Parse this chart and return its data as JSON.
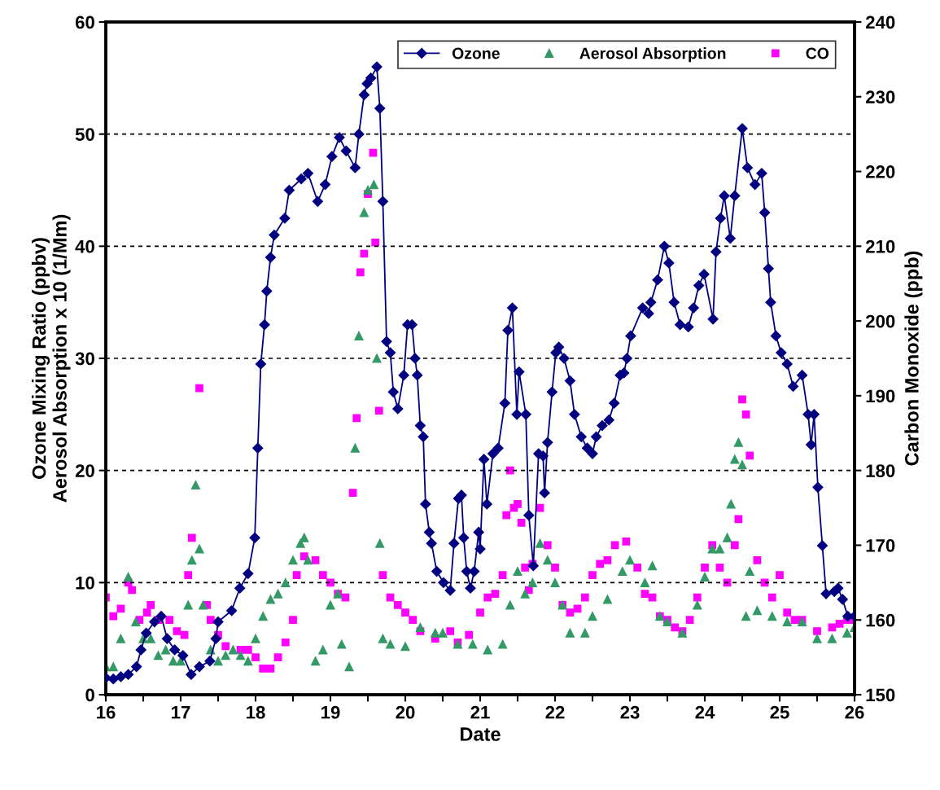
{
  "chart_data": {
    "type": "line",
    "xlabel": "Date",
    "ylabel": "Ozone Mixing Ratio (ppbv)\nAerosol Absorption x 10 (1/Mm)",
    "y2label": "Carbon Monoxide (ppb)",
    "xlim": [
      16,
      26
    ],
    "xticks": [
      16,
      {
        "value": 16.5,
        "label": null
      },
      17,
      {
        "value": 17.5,
        "label": null
      },
      18,
      {
        "value": 18.5,
        "label": null
      },
      19,
      {
        "value": 19.5,
        "label": null
      },
      20,
      {
        "value": 20.5,
        "label": null
      },
      21,
      {
        "value": 21.5,
        "label": null
      },
      22,
      {
        "value": 22.5,
        "label": null
      },
      23,
      {
        "value": 23.5,
        "label": null
      },
      24,
      {
        "value": 24.5,
        "label": null
      },
      25,
      {
        "value": 25.5,
        "label": null
      },
      26
    ],
    "ylim": [
      0,
      60
    ],
    "yticks": [
      0,
      10,
      20,
      30,
      40,
      50,
      60
    ],
    "y2lim": [
      150,
      240
    ],
    "y2ticks": [
      150,
      160,
      170,
      180,
      190,
      200,
      210,
      220,
      230,
      240
    ],
    "grid": "y",
    "legend": "top right",
    "series": [
      {
        "name": "Ozone",
        "marker": "diamond",
        "line_style": "solid",
        "color": "#000080",
        "x": [
          16.0,
          16.1,
          16.2,
          16.3,
          16.41,
          16.47,
          16.54,
          16.65,
          16.74,
          16.82,
          16.92,
          17.03,
          17.14,
          17.25,
          17.39,
          17.47,
          17.5,
          17.68,
          17.79,
          17.9,
          17.99,
          18.03,
          18.07,
          18.12,
          18.15,
          18.2,
          18.25,
          18.39,
          18.45,
          18.61,
          18.7,
          18.83,
          18.93,
          19.02,
          19.12,
          19.21,
          19.33,
          19.38,
          19.45,
          19.49,
          19.54,
          19.62,
          19.66,
          19.7,
          19.75,
          19.8,
          19.84,
          19.9,
          19.98,
          20.03,
          20.09,
          20.13,
          20.16,
          20.2,
          20.24,
          20.27,
          20.32,
          20.35,
          20.42,
          20.51,
          20.6,
          20.65,
          20.71,
          20.75,
          20.78,
          20.82,
          20.87,
          20.92,
          20.98,
          21.0,
          21.05,
          21.09,
          21.17,
          21.24,
          21.33,
          21.37,
          21.43,
          21.49,
          21.52,
          21.61,
          21.65,
          21.71,
          21.78,
          21.84,
          21.86,
          21.9,
          21.96,
          22.01,
          22.05,
          22.12,
          22.2,
          22.26,
          22.35,
          22.43,
          22.5,
          22.55,
          22.63,
          22.72,
          22.79,
          22.87,
          22.92,
          22.96,
          23.01,
          23.17,
          23.25,
          23.28,
          23.37,
          23.46,
          23.52,
          23.59,
          23.67,
          23.78,
          23.85,
          23.92,
          23.99,
          24.11,
          24.15,
          24.21,
          24.26,
          24.34,
          24.4,
          24.5,
          24.57,
          24.67,
          24.76,
          24.8,
          24.85,
          24.88,
          24.95,
          25.02,
          25.1,
          25.18,
          25.3,
          25.38,
          25.42,
          25.46,
          25.51,
          25.57,
          25.62,
          25.73,
          25.78,
          25.84,
          25.91,
          26.0
        ],
        "values": [
          1.5,
          1.4,
          1.6,
          1.8,
          2.5,
          4,
          5.5,
          6.5,
          7,
          5,
          4,
          3.5,
          1.8,
          2.5,
          3,
          5,
          6.5,
          7.5,
          9.5,
          10.8,
          14,
          22,
          29.5,
          33,
          36,
          39,
          41,
          42.5,
          45,
          46,
          46.5,
          44,
          45.5,
          48,
          49.7,
          48.5,
          47,
          50,
          53.5,
          54.5,
          55,
          56,
          52.3,
          44,
          31.5,
          30.5,
          27,
          25.5,
          28.5,
          33,
          33,
          30,
          28.5,
          24,
          23,
          17,
          14.5,
          13.5,
          11,
          10,
          9.3,
          13.5,
          17.5,
          17.8,
          14,
          11,
          9.5,
          11,
          14.5,
          13,
          21,
          17,
          21.5,
          22,
          26,
          32.5,
          34.5,
          25,
          28.8,
          25,
          16,
          11.5,
          21.5,
          21.3,
          18,
          22.5,
          27,
          30.5,
          31,
          30,
          28,
          25,
          23,
          22,
          21.5,
          23,
          24,
          24.5,
          26,
          28.5,
          28.7,
          30,
          32,
          34.5,
          34,
          35,
          37,
          40,
          38.5,
          35,
          33,
          32.8,
          34.5,
          36.5,
          37.5,
          33.5,
          39.5,
          42.5,
          44.5,
          40.7,
          44.5,
          50.5,
          47,
          45.5,
          46.5,
          43,
          38,
          35,
          32,
          30.5,
          29.5,
          27.5,
          28.5,
          25,
          22.3,
          25,
          18.5,
          13.3,
          9,
          9.2,
          9.5,
          8.5,
          7,
          7
        ]
      },
      {
        "name": "Aerosol Absorption",
        "type": "scatter",
        "marker": "triangle",
        "color": "#339966",
        "x": [
          16.0,
          16.1,
          16.2,
          16.3,
          16.4,
          16.5,
          16.6,
          16.7,
          16.8,
          16.9,
          17.0,
          17.1,
          17.15,
          17.2,
          17.25,
          17.3,
          17.4,
          17.5,
          17.6,
          17.7,
          17.8,
          17.9,
          18.0,
          18.1,
          18.2,
          18.3,
          18.4,
          18.5,
          18.6,
          18.65,
          18.7,
          18.8,
          18.9,
          19.0,
          19.1,
          19.15,
          19.25,
          19.33,
          19.38,
          19.45,
          19.5,
          19.58,
          19.62,
          19.66,
          19.7,
          19.8,
          20.0,
          20.2,
          20.4,
          20.5,
          20.7,
          20.9,
          21.1,
          21.3,
          21.4,
          21.5,
          21.6,
          21.7,
          21.8,
          21.9,
          22.0,
          22.1,
          22.2,
          22.4,
          22.5,
          22.7,
          22.9,
          23.0,
          23.2,
          23.3,
          23.4,
          23.5,
          23.7,
          23.9,
          24.0,
          24.1,
          24.2,
          24.3,
          24.35,
          24.4,
          24.45,
          24.5,
          24.55,
          24.6,
          24.7,
          24.9,
          25.1,
          25.3,
          25.5,
          25.7,
          25.9,
          26.0
        ],
        "values": [
          2.5,
          2.5,
          5,
          10.5,
          6.5,
          5,
          5,
          3.5,
          4,
          3,
          3,
          8,
          12,
          18.7,
          13,
          8,
          4,
          3,
          3.5,
          4,
          3.5,
          3,
          5,
          7,
          8.5,
          9,
          10,
          12,
          13.5,
          14,
          12,
          3,
          4,
          8,
          9,
          4.5,
          2.5,
          22,
          32,
          43,
          45,
          45.5,
          30,
          13.5,
          5,
          4.5,
          4.3,
          6,
          5.5,
          5.5,
          4.5,
          4.5,
          4,
          4.5,
          8,
          11,
          9,
          10,
          13.5,
          12,
          10,
          8,
          5.5,
          5.5,
          7,
          8.5,
          11,
          12,
          10,
          11.5,
          7,
          6.5,
          5.5,
          8,
          10.5,
          13,
          13,
          14,
          17,
          21,
          22.5,
          20.5,
          7,
          11,
          7.5,
          7,
          6.5,
          6.5,
          5,
          5,
          5.5,
          6
        ]
      },
      {
        "name": "CO",
        "type": "scatter",
        "marker": "square",
        "color": "#ff00ff",
        "axis": "y2",
        "x": [
          16.0,
          16.1,
          16.2,
          16.3,
          16.35,
          16.45,
          16.55,
          16.6,
          16.7,
          16.85,
          16.95,
          17.05,
          17.1,
          17.15,
          17.25,
          17.35,
          17.4,
          17.5,
          17.6,
          17.8,
          17.9,
          18.0,
          18.1,
          18.2,
          18.3,
          18.4,
          18.5,
          18.55,
          18.65,
          18.8,
          18.9,
          19.0,
          19.1,
          19.2,
          19.3,
          19.35,
          19.4,
          19.45,
          19.5,
          19.57,
          19.6,
          19.65,
          19.7,
          19.8,
          19.9,
          20.0,
          20.1,
          20.2,
          20.4,
          20.6,
          20.7,
          20.85,
          21.0,
          21.1,
          21.2,
          21.3,
          21.35,
          21.4,
          21.45,
          21.5,
          21.55,
          21.6,
          21.65,
          21.7,
          21.8,
          21.9,
          22.0,
          22.1,
          22.2,
          22.3,
          22.4,
          22.5,
          22.6,
          22.7,
          22.8,
          22.95,
          23.1,
          23.2,
          23.3,
          23.4,
          23.5,
          23.6,
          23.7,
          23.8,
          23.9,
          24.0,
          24.1,
          24.2,
          24.3,
          24.4,
          24.45,
          24.5,
          24.55,
          24.6,
          24.7,
          24.8,
          24.9,
          25.0,
          25.1,
          25.2,
          25.3,
          25.5,
          25.7,
          25.8,
          25.9,
          26.0
        ],
        "values": [
          163,
          160.5,
          161.5,
          165,
          164,
          160,
          161,
          162,
          160,
          160,
          158.5,
          158,
          166,
          171,
          191,
          162,
          160,
          158,
          156.5,
          156,
          156,
          155,
          153.5,
          153.5,
          155,
          157,
          160,
          166,
          168.5,
          168,
          166,
          165,
          163.5,
          163,
          177,
          187,
          206.5,
          209,
          217,
          222.5,
          210.5,
          188,
          166,
          163,
          162,
          161,
          160,
          158.5,
          157.5,
          158.5,
          157,
          158,
          161,
          163,
          163.5,
          166,
          174,
          180,
          175,
          175.5,
          173,
          167,
          164,
          167.5,
          175,
          170,
          167,
          162,
          161,
          161.5,
          163,
          166,
          167.5,
          168,
          170,
          170.5,
          167,
          163.5,
          163,
          160.5,
          160,
          159,
          158.5,
          160,
          163,
          167,
          170,
          167,
          165,
          170,
          173.5,
          189.5,
          187.5,
          182,
          168,
          165,
          163,
          166,
          161,
          160,
          160,
          158.5,
          159,
          159.5,
          160,
          160
        ]
      }
    ]
  }
}
